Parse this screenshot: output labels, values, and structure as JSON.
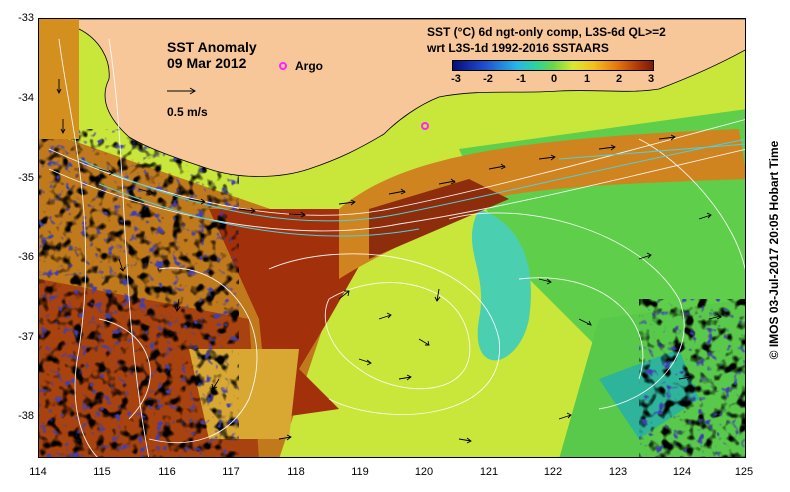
{
  "map": {
    "title": "SST Anomaly",
    "date": "09 Mar 2012",
    "legend_argo": "Argo",
    "scale_label": "0.5 m/s",
    "product_line1": "SST (°C) 6d ngt-only comp, L3S-6d QL>=2",
    "product_line2": "wrt L3S-1d 1992-2016 SSTAARS",
    "credit": "©  IMOS 03-Jul-2017 20:05 Hobart Time"
  },
  "colorbar": {
    "ticks": [
      "-3",
      "-2",
      "-1",
      "0",
      "1",
      "2",
      "3"
    ]
  },
  "axes": {
    "x_ticks": [
      "114",
      "115",
      "116",
      "117",
      "118",
      "119",
      "120",
      "121",
      "122",
      "123",
      "124",
      "125"
    ],
    "y_ticks": [
      "-33",
      "-34",
      "-35",
      "-36",
      "-37",
      "-38"
    ]
  },
  "colors": {
    "land": "#f7c79a",
    "argo": "#ff22ff",
    "text": "#000000"
  }
}
